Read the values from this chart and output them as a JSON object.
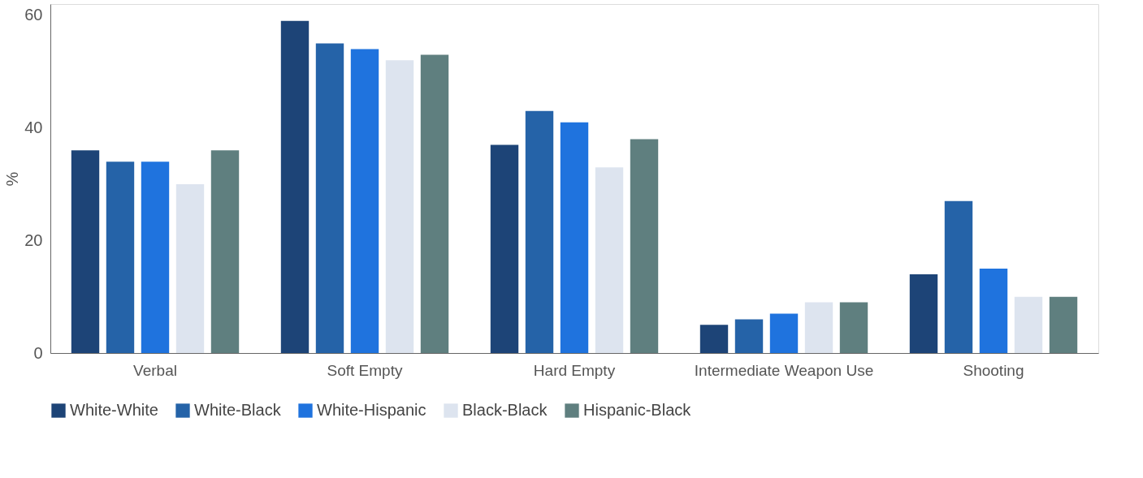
{
  "chart_data": {
    "type": "bar",
    "ylabel": "%",
    "categories": [
      "Verbal",
      "Soft Empty",
      "Hard Empty",
      "Intermediate Weapon Use",
      "Shooting"
    ],
    "series": [
      {
        "name": "White-White",
        "color": "#1d4477",
        "values": [
          36,
          59,
          37,
          5,
          14
        ]
      },
      {
        "name": "White-Black",
        "color": "#2563a8",
        "values": [
          34,
          55,
          43,
          6,
          27
        ]
      },
      {
        "name": "White-Hispanic",
        "color": "#1f73de",
        "values": [
          34,
          54,
          41,
          7,
          15
        ]
      },
      {
        "name": "Black-Black",
        "color": "#dde4ef",
        "values": [
          30,
          52,
          33,
          9,
          10
        ]
      },
      {
        "name": "Hispanic-Black",
        "color": "#5f7f7f",
        "values": [
          36,
          53,
          38,
          9,
          10
        ]
      }
    ],
    "ylim": [
      0,
      62
    ],
    "yticks": [
      0,
      20,
      40,
      60
    ],
    "grid": false,
    "legend": "bottom"
  }
}
